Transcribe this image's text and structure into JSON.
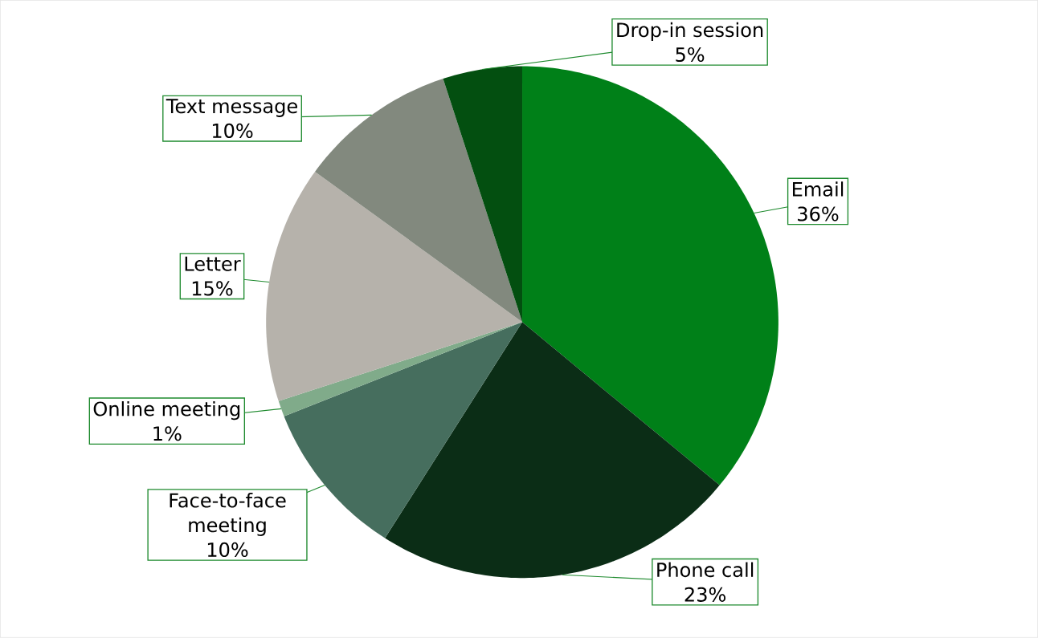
{
  "chart_data": {
    "type": "pie",
    "categories": [
      "Email",
      "Phone call",
      "Face-to-face meeting",
      "Online meeting",
      "Letter",
      "Text message",
      "Drop-in session"
    ],
    "values": [
      36,
      23,
      10,
      1,
      15,
      10,
      5
    ],
    "value_labels": [
      "36%",
      "23%",
      "10%",
      "1%",
      "15%",
      "10%",
      "5%"
    ],
    "colors": [
      "#008018",
      "#0b2d16",
      "#466e5e",
      "#80ab8a",
      "#b6b2ab",
      "#82897e",
      "#034f10"
    ]
  }
}
